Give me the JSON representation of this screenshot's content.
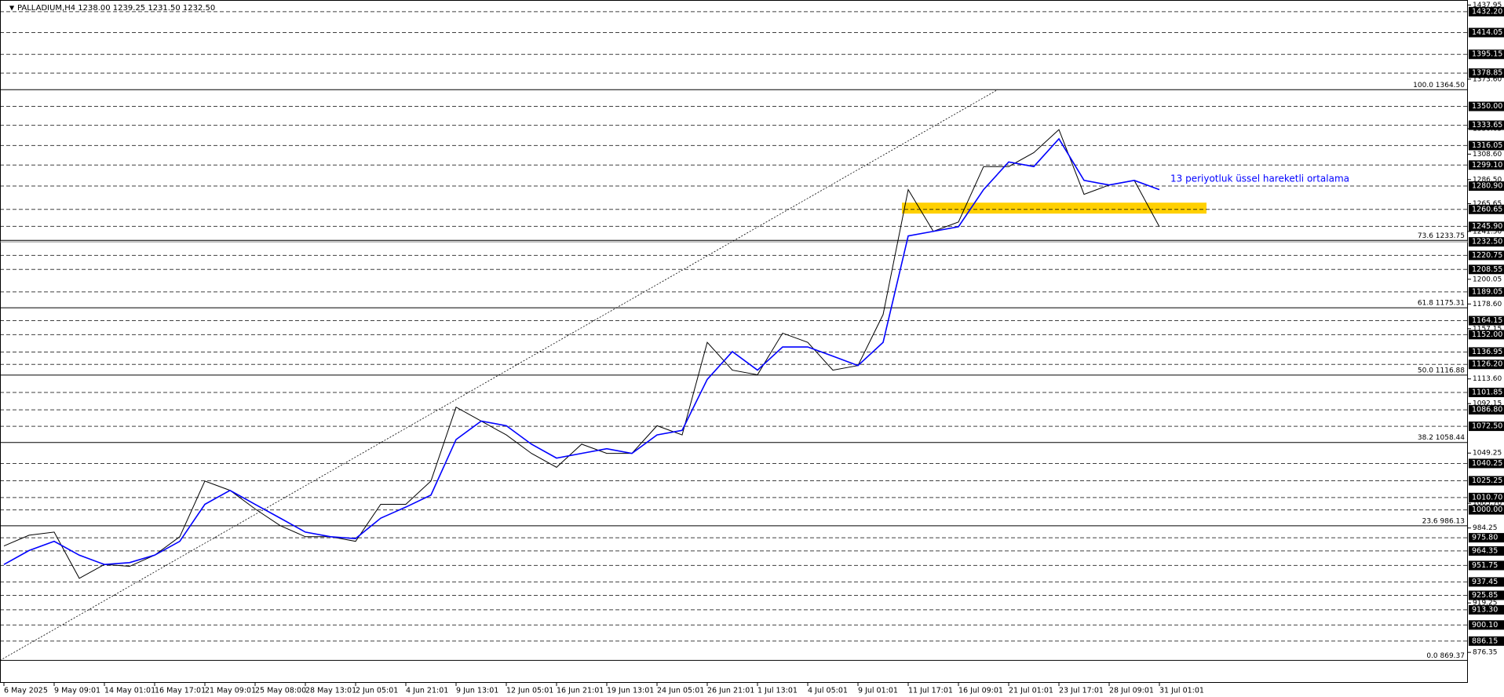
{
  "header": "PALLADIUM,H4 1238.00 1239.25 1231.50 1232.50",
  "chart_data": {
    "type": "line",
    "annotation": "13 periyotluk üssel hareketli ortalama",
    "categories": [
      "6 May 2025",
      null,
      "9 May 09:01",
      null,
      "14 May 01:01",
      null,
      "16 May 17:01",
      null,
      "21 May 09:01",
      null,
      "25 May 08:00",
      null,
      "28 May 13:01",
      null,
      "2 Jun 05:01",
      null,
      "4 Jun 21:01",
      null,
      "9 Jun 13:01",
      null,
      "12 Jun 05:01",
      null,
      "16 Jun 21:01",
      null,
      "19 Jun 13:01",
      null,
      "24 Jun 05:01",
      null,
      "26 Jun 21:01",
      null,
      "1 Jul 13:01",
      null,
      "4 Jul 05:01",
      null,
      "9 Jul 01:01",
      null,
      "11 Jul 17:01",
      null,
      "16 Jul 09:01",
      null,
      "21 Jul 01:01",
      null,
      "23 Jul 17:01",
      null,
      "28 Jul 09:01",
      null,
      "31 Jul 01:01"
    ],
    "series": [
      {
        "color": "#000000",
        "values": [
          968.7,
          978,
          980.7,
          940.6,
          952.6,
          951,
          960.7,
          976.7,
          1025,
          1016.9,
          1000.8,
          986.3,
          976.7,
          976.7,
          972.7,
          1004.8,
          1004.8,
          1025,
          1089.1,
          1077,
          1065,
          1049,
          1036.9,
          1057,
          1049,
          1049,
          1073,
          1065,
          1145.3,
          1121.2,
          1117.2,
          1153.3,
          1145.3,
          1121.2,
          1125.2,
          1169.4,
          1277.8,
          1241.6,
          1249.7,
          1297.8,
          1297.8,
          1309.9,
          1329.9,
          1273.7,
          1281.8,
          1285.8,
          1245.6
        ]
      },
      {
        "color": "#0000ff",
        "values": [
          952.6,
          964.7,
          972.7,
          960.7,
          952.6,
          954.2,
          960.7,
          972.7,
          1004.8,
          1016.9,
          1004.8,
          992.8,
          980.7,
          976.7,
          975.1,
          992.8,
          1002.4,
          1012.8,
          1061,
          1077,
          1073,
          1057,
          1044.9,
          1049,
          1053,
          1049,
          1065,
          1069,
          1113.2,
          1137.3,
          1121.2,
          1141.3,
          1141.3,
          1133.3,
          1125.2,
          1145.3,
          1237.6,
          1241.6,
          1245.6,
          1277.8,
          1301.8,
          1297.8,
          1321.9,
          1285.8,
          1281.8,
          1285.8,
          1277.8
        ]
      }
    ],
    "ylim": [
      849.9,
      1442.3
    ],
    "yticks": [
      1437.95,
      {
        "value": 1373.6,
        "label": "1373.60"
      },
      {
        "value": 1330.65,
        "label": "1330.65"
      },
      {
        "value": 1308.6,
        "label": "1308.60"
      },
      {
        "value": 1286.5,
        "label": "1286.50"
      },
      1265.65,
      {
        "value": 1241.5,
        "label": "1241.50"
      },
      1200.05,
      {
        "value": 1178.6,
        "label": "1178.60"
      },
      1157.15,
      {
        "value": 1113.6,
        "label": "1113.60"
      },
      1092.15,
      1049.25,
      {
        "value": 1005.7,
        "label": "1005.70"
      },
      984.25,
      919.25,
      876.35
    ],
    "levels": [
      {
        "value": 1432.2,
        "label": "1432.20"
      },
      1414.05,
      1395.15,
      1378.85,
      {
        "value": 1350,
        "label": "1350.00"
      },
      1333.65,
      1316.05,
      {
        "value": 1299.1,
        "label": "1299.10"
      },
      {
        "value": 1280.9,
        "label": "1280.90"
      },
      1260.65,
      {
        "value": 1245.9,
        "label": "1245.90"
      },
      1220.75,
      1208.55,
      1189.05,
      1164.15,
      {
        "value": 1152,
        "label": "1152.00"
      },
      1136.95,
      {
        "value": 1126.2,
        "label": "1126.20"
      },
      1101.85,
      {
        "value": 1086.8,
        "label": "1086.80"
      },
      {
        "value": 1072.5,
        "label": "1072.50"
      },
      1040.25,
      1025.25,
      {
        "value": 1010.7,
        "label": "1010.70"
      },
      {
        "value": 1000,
        "label": "1000.00"
      },
      {
        "value": 975.8,
        "label": "975.80"
      },
      964.35,
      951.75,
      937.45,
      925.85,
      {
        "value": 913.3,
        "label": "913.30"
      },
      {
        "value": 900.1,
        "label": "900.10"
      },
      886.15
    ],
    "current_price": {
      "value": 1232.5,
      "label": "1232.50"
    },
    "fib_levels": [
      {
        "value": 1364.5,
        "label": "100.0 1364.50"
      },
      {
        "value": 1233.75,
        "label": "73.6 1233.75"
      },
      {
        "value": 1175.31,
        "label": "61.8 1175.31"
      },
      {
        "value": 1116.88,
        "label": "50.0 1116.88"
      },
      {
        "value": 1058.44,
        "label": "38.2 1058.44"
      },
      {
        "value": 986.13,
        "label": "23.6 986.13"
      },
      {
        "value": 869.37,
        "label": "0.0 869.37"
      }
    ],
    "zone": {
      "ylim": [
        1257,
        1266.5
      ],
      "color": "#ffd000"
    }
  }
}
